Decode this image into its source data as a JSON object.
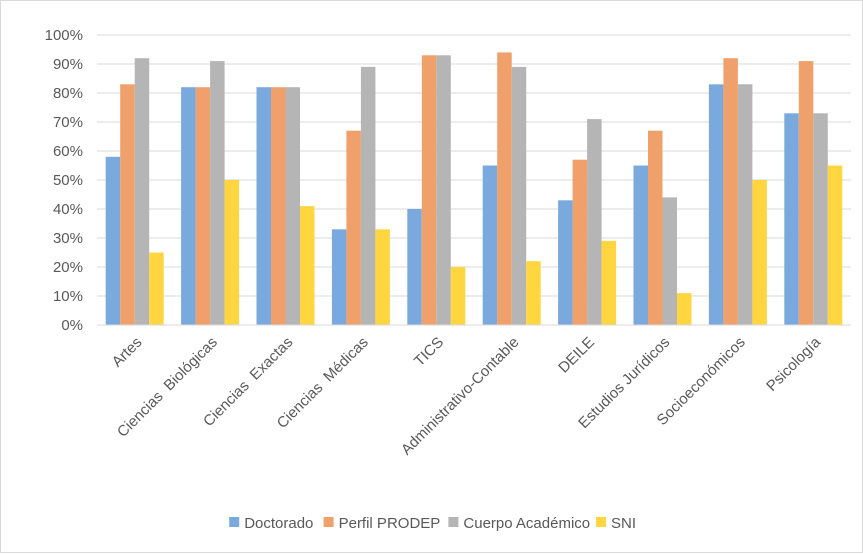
{
  "chart_data": {
    "type": "bar",
    "title": "",
    "xlabel": "",
    "ylabel": "",
    "ylim": [
      0,
      100
    ],
    "yticks": [
      "0%",
      "10%",
      "20%",
      "30%",
      "40%",
      "50%",
      "60%",
      "70%",
      "80%",
      "90%",
      "100%"
    ],
    "categories": [
      "Artes",
      "Ciencias  Biológicas",
      "Ciencias  Exactas",
      "Ciencias  Médicas",
      "TICS",
      "Administrativo-Contable",
      "DEILE",
      "Estudios Jurídicos",
      "Socioeconómicos",
      "Psicología"
    ],
    "series": [
      {
        "name": "Doctorado",
        "color": "#7aaadd",
        "values": [
          58,
          82,
          82,
          33,
          40,
          55,
          43,
          55,
          83,
          73
        ]
      },
      {
        "name": "Perfil PRODEP",
        "color": "#f0a06a",
        "values": [
          83,
          82,
          82,
          67,
          93,
          94,
          57,
          67,
          92,
          91
        ]
      },
      {
        "name": "Cuerpo Académico",
        "color": "#b5b5b5",
        "values": [
          92,
          91,
          82,
          89,
          93,
          89,
          71,
          44,
          83,
          73
        ]
      },
      {
        "name": "SNI",
        "color": "#ffd640",
        "values": [
          25,
          50,
          41,
          33,
          20,
          22,
          29,
          11,
          50,
          55
        ]
      }
    ],
    "legend_position": "bottom",
    "grid": true
  }
}
